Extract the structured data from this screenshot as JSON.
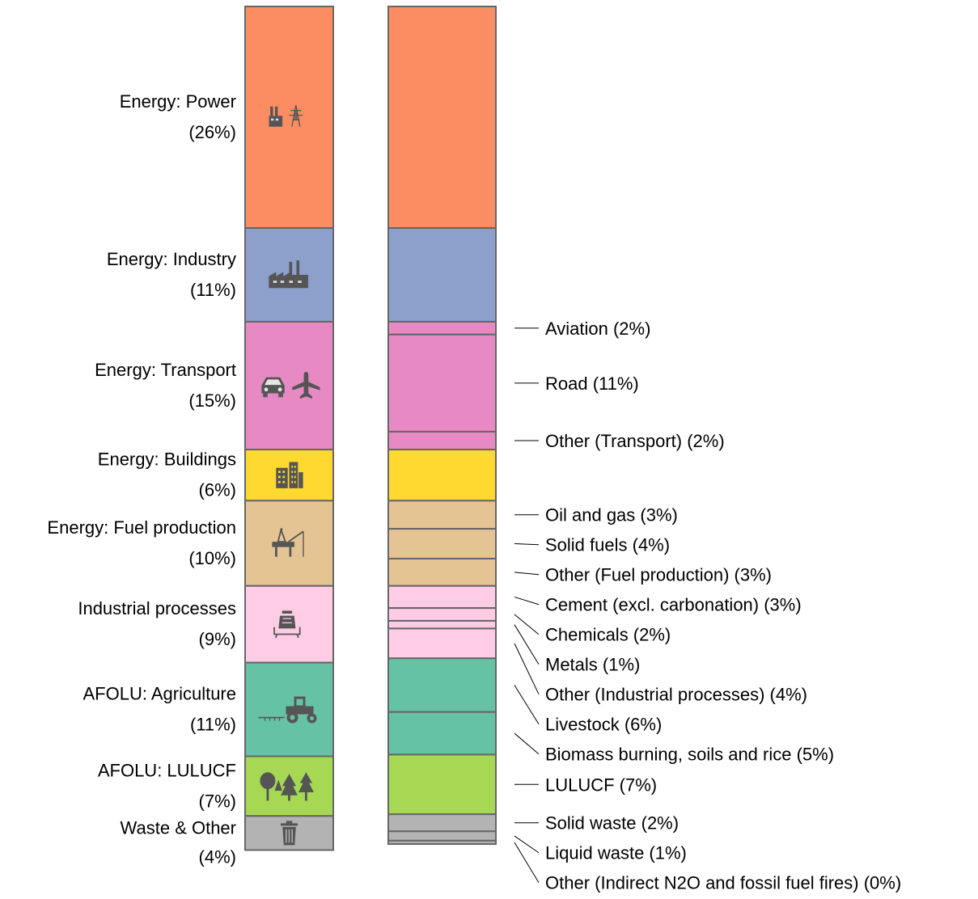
{
  "chart_data": {
    "type": "stacked-bar",
    "total_percent": 100,
    "sectors": [
      {
        "name": "Energy: Power",
        "percent_label": "(26%)",
        "value": 26,
        "color": "#FC8D62",
        "icon": "power-plant-icon"
      },
      {
        "name": "Energy: Industry",
        "percent_label": "(11%)",
        "value": 11,
        "color": "#8DA0CB",
        "icon": "factory-icon"
      },
      {
        "name": "Energy: Transport",
        "percent_label": "(15%)",
        "value": 15,
        "color": "#E78AC3",
        "icon": "car-plane-icon"
      },
      {
        "name": "Energy: Buildings",
        "percent_label": "(6%)",
        "value": 6,
        "color": "#FFD92F",
        "icon": "buildings-icon"
      },
      {
        "name": "Energy: Fuel production",
        "percent_label": "(10%)",
        "value": 10,
        "color": "#E5C494",
        "icon": "oil-rig-icon"
      },
      {
        "name": "Industrial processes",
        "percent_label": "(9%)",
        "value": 9,
        "color": "#FFCCE6",
        "icon": "cement-mixer-icon"
      },
      {
        "name": "AFOLU: Agriculture",
        "percent_label": "(11%)",
        "value": 11,
        "color": "#66C2A5",
        "icon": "tractor-icon"
      },
      {
        "name": "AFOLU: LULUCF",
        "percent_label": "(7%)",
        "value": 7,
        "color": "#A6D854",
        "icon": "trees-icon"
      },
      {
        "name": "Waste & Other",
        "percent_label": "(4%)",
        "value": 4,
        "color": "#B3B3B3",
        "icon": "trash-can-icon"
      }
    ],
    "subsectors": [
      {
        "name": "Energy: Power",
        "sector": 0,
        "value": 26
      },
      {
        "name": "Energy: Industry",
        "sector": 1,
        "value": 11
      },
      {
        "label": "Aviation (2%)",
        "sector": 2,
        "value": 1.5
      },
      {
        "label": "Road (11%)",
        "sector": 2,
        "value": 11.4
      },
      {
        "label": "Other (Transport) (2%)",
        "sector": 2,
        "value": 2.1
      },
      {
        "name": "Energy: Buildings",
        "sector": 3,
        "value": 6
      },
      {
        "label": "Oil and gas (3%)",
        "sector": 4,
        "value": 3.3
      },
      {
        "label": "Solid fuels (4%)",
        "sector": 4,
        "value": 3.5
      },
      {
        "label": "Other (Fuel production) (3%)",
        "sector": 4,
        "value": 3.2
      },
      {
        "label": "Cement (excl. carbonation) (3%)",
        "sector": 5,
        "value": 2.6
      },
      {
        "label": "Chemicals (2%)",
        "sector": 5,
        "value": 1.5
      },
      {
        "label": "Metals (1%)",
        "sector": 5,
        "value": 0.9
      },
      {
        "label": "Other (Industrial processes) (4%)",
        "sector": 5,
        "value": 3.5
      },
      {
        "label": "Livestock (6%)",
        "sector": 6,
        "value": 6.3
      },
      {
        "label": "Biomass burning, soils and rice (5%)",
        "sector": 6,
        "value": 5.0
      },
      {
        "label": "LULUCF (7%)",
        "sector": 7,
        "value": 7
      },
      {
        "label": "Solid waste (2%)",
        "sector": 8,
        "value": 2.0
      },
      {
        "label": "Liquid waste (1%)",
        "sector": 8,
        "value": 1.1
      },
      {
        "label": "Other (Indirect N2O and fossil fuel fires) (0%)",
        "sector": 8,
        "value": 0.4
      }
    ]
  }
}
